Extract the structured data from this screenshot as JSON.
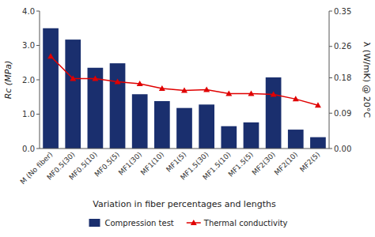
{
  "chart_data": {
    "type": "bar",
    "categories": [
      "M (No fiber)",
      "MF0.5(30)",
      "MF0.5(10)",
      "MF0.5(5)",
      "MF1(30)",
      "MF1(10)",
      "MF1(5)",
      "MF1.5(30)",
      "MF1.5(10)",
      "MF1.5(5)",
      "MF2(30)",
      "MF2(10)",
      "MF2(5)"
    ],
    "series": [
      {
        "name": "Compression test",
        "type": "bar",
        "color": "#1a2f6e",
        "values": [
          3.5,
          3.17,
          2.35,
          2.48,
          1.58,
          1.38,
          1.18,
          1.28,
          0.65,
          0.76,
          2.07,
          0.55,
          0.33
        ]
      },
      {
        "name": "Thermal conductivity",
        "type": "line",
        "axis": "y2",
        "color": "#e00000",
        "marker": "triangle",
        "values": [
          0.235,
          0.178,
          0.178,
          0.17,
          0.165,
          0.153,
          0.148,
          0.15,
          0.14,
          0.14,
          0.138,
          0.126,
          0.11
        ]
      }
    ],
    "xlabel": "Variation in fiber percentages and lengths",
    "ylabel": "Rc (MPa)",
    "y2label": "λ (W/mK) @ 20°C",
    "ylim": [
      0.0,
      4.0
    ],
    "yticks": [
      {
        "value": 0.0,
        "label": "0.0"
      },
      {
        "value": 1.0,
        "label": "1.0"
      },
      {
        "value": 2.0,
        "label": "2.0"
      },
      {
        "value": 3.0,
        "label": "3.0"
      },
      {
        "value": 4.0,
        "label": "4.0"
      }
    ],
    "y2lim": [
      0.0,
      0.35
    ],
    "y2ticks": [
      {
        "value": 0.0,
        "label": "0.00"
      },
      0.09,
      0.18,
      0.26,
      0.35
    ],
    "grid": false,
    "legend": "bottom"
  }
}
